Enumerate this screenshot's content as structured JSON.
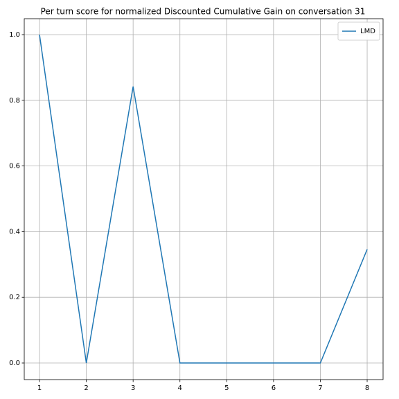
{
  "chart_data": {
    "type": "line",
    "title": "Per turn score for normalized Discounted Cumulative Gain on conversation 31",
    "x": [
      1,
      2,
      3,
      4,
      5,
      6,
      7,
      8
    ],
    "series": [
      {
        "name": "LMD",
        "color": "#1f77b4",
        "values": [
          1.0,
          0.0,
          0.842,
          0.0,
          0.0,
          0.0,
          0.0,
          0.346
        ]
      }
    ],
    "xlim": [
      0.674,
      8.34
    ],
    "xticks": [
      1,
      2,
      3,
      4,
      5,
      6,
      7,
      8
    ],
    "ylim": [
      -0.0506,
      1.0485
    ],
    "yticks": [
      {
        "value": 0,
        "label": "0.0"
      },
      {
        "value": 0.2,
        "label": "0.2"
      },
      {
        "value": 0.4,
        "label": "0.4"
      },
      {
        "value": 0.6,
        "label": "0.6"
      },
      {
        "value": 0.8,
        "label": "0.8"
      },
      {
        "value": 1.0,
        "label": "1.0"
      }
    ],
    "grid": true,
    "legend": "upper right"
  }
}
